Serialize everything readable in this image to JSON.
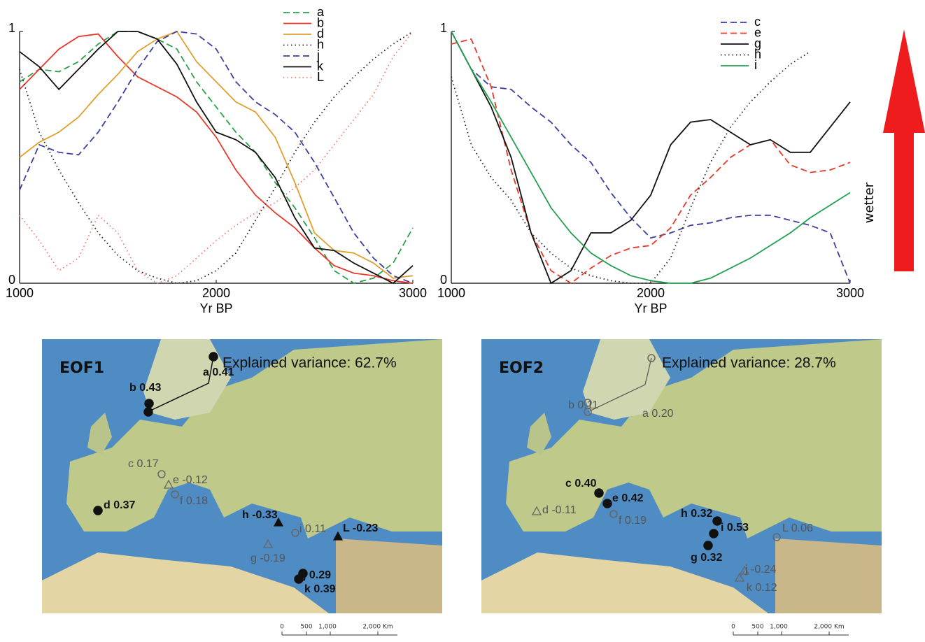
{
  "chart_data": [
    {
      "type": "line",
      "x_label": "Yr BP",
      "x": [
        1000,
        1100,
        1200,
        1300,
        1400,
        1500,
        1600,
        1700,
        1800,
        1900,
        2000,
        2100,
        2200,
        2300,
        2400,
        2500,
        2600,
        2700,
        2800,
        2900,
        3000
      ],
      "xlim": [
        1000,
        3000
      ],
      "xticks": [
        1000,
        2000,
        3000
      ],
      "ylim": [
        0,
        1
      ],
      "yticks": [
        0,
        1
      ],
      "series": [
        {
          "name": "a",
          "color": "#2aa147",
          "dash": "dashed",
          "values": [
            0.8,
            0.85,
            0.84,
            0.88,
            0.95,
            1.0,
            1.0,
            0.97,
            0.93,
            0.8,
            0.7,
            0.6,
            0.52,
            0.4,
            0.3,
            0.18,
            0.05,
            0.0,
            0.02,
            0.08,
            0.22
          ]
        },
        {
          "name": "b",
          "color": "#e8392b",
          "dash": "solid",
          "values": [
            0.77,
            0.85,
            0.93,
            0.98,
            0.99,
            0.9,
            0.82,
            0.78,
            0.74,
            0.68,
            0.58,
            0.45,
            0.35,
            0.28,
            0.22,
            0.14,
            0.07,
            0.04,
            0.03,
            0.01,
            0.0
          ]
        },
        {
          "name": "d",
          "color": "#e0a030",
          "dash": "solid",
          "values": [
            0.5,
            0.56,
            0.6,
            0.66,
            0.75,
            0.83,
            0.92,
            0.97,
            1.0,
            0.88,
            0.8,
            0.72,
            0.68,
            0.58,
            0.4,
            0.2,
            0.13,
            0.12,
            0.08,
            0.02,
            0.03
          ]
        },
        {
          "name": "h",
          "color": "#222222",
          "dash": "dotted",
          "values": [
            0.85,
            0.6,
            0.45,
            0.32,
            0.2,
            0.11,
            0.05,
            0.02,
            0.0,
            0.01,
            0.05,
            0.12,
            0.25,
            0.38,
            0.52,
            0.64,
            0.74,
            0.82,
            0.89,
            0.95,
            1.0
          ]
        },
        {
          "name": "j",
          "color": "#3a3fa0",
          "dash": "dashed",
          "values": [
            0.37,
            0.55,
            0.52,
            0.51,
            0.6,
            0.72,
            0.85,
            0.96,
            1.0,
            0.99,
            0.93,
            0.8,
            0.72,
            0.67,
            0.6,
            0.48,
            0.34,
            0.2,
            0.1,
            0.03,
            0.0
          ]
        },
        {
          "name": "k",
          "color": "#111111",
          "dash": "solid",
          "values": [
            0.92,
            0.86,
            0.77,
            0.85,
            0.93,
            1.0,
            1.0,
            0.97,
            0.87,
            0.72,
            0.6,
            0.57,
            0.52,
            0.42,
            0.26,
            0.14,
            0.13,
            0.08,
            0.04,
            0.0,
            0.07
          ]
        },
        {
          "name": "L",
          "color": "#f07a6a",
          "dash": "dotted",
          "values": [
            0.27,
            0.17,
            0.05,
            0.1,
            0.27,
            0.2,
            0.05,
            0.0,
            0.03,
            0.1,
            0.17,
            0.23,
            0.28,
            0.32,
            0.38,
            0.45,
            0.55,
            0.65,
            0.75,
            0.9,
            1.0
          ]
        }
      ]
    },
    {
      "type": "line",
      "x_label": "Yr BP",
      "x": [
        1000,
        1100,
        1200,
        1300,
        1400,
        1500,
        1600,
        1700,
        1800,
        1900,
        2000,
        2100,
        2200,
        2300,
        2400,
        2500,
        2600,
        2700,
        2800,
        2900,
        3000
      ],
      "xlim": [
        1000,
        3000
      ],
      "xticks": [
        1000,
        2000,
        3000
      ],
      "ylim": [
        0,
        1
      ],
      "yticks": [
        0,
        1
      ],
      "series": [
        {
          "name": "c",
          "color": "#3a3fa0",
          "dash": "dashed",
          "values": [
            1.0,
            0.85,
            0.78,
            0.77,
            0.7,
            0.64,
            0.55,
            0.48,
            0.36,
            0.26,
            0.18,
            0.2,
            0.23,
            0.24,
            0.26,
            0.27,
            0.27,
            0.25,
            0.23,
            0.2,
            0.0
          ]
        },
        {
          "name": "e",
          "color": "#e8392b",
          "dash": "dashed",
          "values": [
            0.95,
            0.97,
            0.78,
            0.45,
            0.2,
            0.05,
            0.0,
            0.06,
            0.11,
            0.14,
            0.15,
            0.22,
            0.35,
            0.42,
            0.5,
            0.55,
            0.57,
            0.47,
            0.44,
            0.45,
            0.48
          ]
        },
        {
          "name": "g",
          "color": "#111111",
          "dash": "solid",
          "values": [
            1.0,
            0.85,
            0.7,
            0.5,
            0.2,
            0.0,
            0.05,
            0.2,
            0.2,
            0.25,
            0.35,
            0.55,
            0.64,
            0.65,
            0.6,
            0.55,
            0.57,
            0.52,
            0.52,
            0.62,
            0.72
          ]
        },
        {
          "name": "h",
          "color": "#222222",
          "dash": "dotted",
          "values": [
            0.82,
            0.55,
            0.42,
            0.33,
            0.2,
            0.12,
            0.06,
            0.03,
            0.01,
            0.0,
            0.0,
            0.1,
            0.3,
            0.48,
            0.62,
            0.72,
            0.8,
            0.87,
            0.92,
            null,
            null
          ]
        },
        {
          "name": "i",
          "color": "#22a050",
          "dash": "solid",
          "values": [
            1.0,
            0.85,
            0.72,
            0.58,
            0.44,
            0.3,
            0.2,
            0.12,
            0.07,
            0.03,
            0.01,
            0.0,
            0.0,
            0.02,
            0.06,
            0.1,
            0.15,
            0.2,
            0.26,
            0.31,
            0.36
          ]
        }
      ]
    }
  ],
  "arrow_label": "wetter",
  "maps": [
    {
      "title": "EOF1",
      "variance": "Explained variance: 62.7%",
      "sites": [
        {
          "label": "a 0.41",
          "marker": "filled-circle"
        },
        {
          "label": "b 0.43",
          "marker": "filled-circle"
        },
        {
          "label": "c 0.17",
          "marker": "open-circle"
        },
        {
          "label": "e -0.12",
          "marker": "open-triangle"
        },
        {
          "label": "f 0.18",
          "marker": "open-circle"
        },
        {
          "label": "d 0.37",
          "marker": "filled-circle"
        },
        {
          "label": "h -0.33",
          "marker": "filled-triangle"
        },
        {
          "label": "i 0.11",
          "marker": "open-circle"
        },
        {
          "label": "L -0.23",
          "marker": "filled-triangle"
        },
        {
          "label": "g -0.19",
          "marker": "open-triangle"
        },
        {
          "label": "j 0.29",
          "marker": "filled-circle"
        },
        {
          "label": "k 0.39",
          "marker": "filled-circle"
        }
      ],
      "scale": [
        "0",
        "500",
        "1,000",
        "2,000 Km"
      ]
    },
    {
      "title": "EOF2",
      "variance": "Explained variance: 28.7%",
      "sites": [
        {
          "label": "a 0.20",
          "marker": "open-circle"
        },
        {
          "label": "b 0.11",
          "marker": "open-circle"
        },
        {
          "label": "c 0.40",
          "marker": "filled-circle"
        },
        {
          "label": "e 0.42",
          "marker": "filled-circle"
        },
        {
          "label": "f 0.19",
          "marker": "open-circle"
        },
        {
          "label": "d -0.11",
          "marker": "open-triangle"
        },
        {
          "label": "h 0.32",
          "marker": "filled-circle"
        },
        {
          "label": "i 0.53",
          "marker": "filled-circle"
        },
        {
          "label": "L 0.06",
          "marker": "open-circle"
        },
        {
          "label": "g 0.32",
          "marker": "filled-circle"
        },
        {
          "label": "j -0.24",
          "marker": "open-triangle"
        },
        {
          "label": "k 0.12",
          "marker": "open-triangle"
        }
      ],
      "scale": [
        "0",
        "500",
        "1,000",
        "2,000 Km"
      ]
    }
  ]
}
